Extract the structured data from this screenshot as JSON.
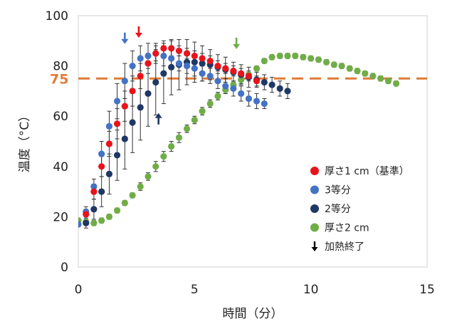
{
  "chart_data": {
    "type": "scatter",
    "xlabel": "時間（分）",
    "ylabel": "温度（°C）",
    "xlim": [
      0,
      15
    ],
    "ylim": [
      0,
      100
    ],
    "xticks": [
      "0",
      "5",
      "10",
      "15"
    ],
    "yticks": [
      "0",
      "20",
      "40",
      "60",
      "80",
      "100"
    ],
    "grid": false,
    "legend_position": "bottom-right",
    "reference_line": {
      "y": 75,
      "label": "75",
      "color": "#E07B39",
      "style": "dashed"
    },
    "series": [
      {
        "name": "厚さ1 cm（基準）",
        "color": "#E8141B",
        "x": [
          0.33,
          0.67,
          1.0,
          1.33,
          1.67,
          2.0,
          2.33,
          2.67,
          3.0,
          3.33,
          3.67,
          4.0,
          4.33,
          4.67,
          5.0,
          5.33,
          5.67,
          6.0,
          6.33,
          6.67,
          7.0,
          7.33,
          7.67
        ],
        "y": [
          21,
          30,
          40,
          49,
          57,
          64,
          70,
          76,
          81,
          85,
          87,
          87,
          86,
          85,
          84,
          83,
          82,
          80,
          79,
          78,
          77,
          76,
          74
        ],
        "err": [
          2,
          3,
          4,
          5,
          6,
          6,
          6,
          5,
          4,
          3,
          3,
          3,
          2,
          2,
          2,
          2,
          2,
          2,
          2,
          2,
          2,
          2,
          2
        ]
      },
      {
        "name": "3等分",
        "color": "#4472C4",
        "x": [
          0.0,
          0.33,
          0.67,
          1.0,
          1.33,
          1.67,
          2.0,
          2.33,
          2.67,
          3.0,
          3.33,
          3.67,
          4.0,
          4.33,
          4.67,
          5.0,
          5.33,
          5.67,
          6.0,
          6.33,
          6.67,
          7.0,
          7.33,
          7.67,
          8.0
        ],
        "y": [
          17,
          22,
          32,
          45,
          56,
          66,
          74,
          80,
          83,
          84,
          85,
          84,
          83,
          81,
          80,
          79,
          77,
          76,
          74,
          72,
          71,
          69,
          67,
          66,
          65
        ],
        "err": [
          1,
          2,
          3,
          5,
          6,
          7,
          7,
          6,
          5,
          5,
          4,
          4,
          4,
          3,
          3,
          3,
          3,
          3,
          3,
          3,
          3,
          3,
          3,
          3,
          2
        ]
      },
      {
        "name": "2等分",
        "color": "#1F3864",
        "x": [
          0.33,
          0.67,
          1.0,
          1.33,
          1.67,
          2.0,
          2.33,
          2.67,
          3.0,
          3.33,
          3.67,
          4.0,
          4.33,
          4.67,
          5.0,
          5.33,
          5.67,
          6.0,
          6.33,
          6.67,
          7.0,
          7.33,
          7.67,
          8.0,
          8.33,
          8.67,
          9.0
        ],
        "y": [
          17.5,
          23,
          30,
          37,
          44.5,
          51,
          57.5,
          63.5,
          69,
          73.5,
          77,
          79.5,
          80.5,
          81.5,
          81.5,
          81,
          80.5,
          79.5,
          78.5,
          77.5,
          76.5,
          75.5,
          74.5,
          73.5,
          72.5,
          71,
          70
        ],
        "err": [
          2,
          4,
          6,
          8,
          10,
          12,
          12,
          13,
          13,
          13,
          12,
          11,
          10,
          9,
          8,
          7,
          6,
          5,
          5,
          4,
          4,
          4,
          3,
          3,
          3,
          3,
          3
        ]
      },
      {
        "name": "厚さ2 cm",
        "color": "#70AD47",
        "x": [
          0.0,
          0.33,
          0.67,
          1.0,
          1.33,
          1.67,
          2.0,
          2.33,
          2.67,
          3.0,
          3.33,
          3.67,
          4.0,
          4.33,
          4.67,
          5.0,
          5.33,
          5.67,
          6.0,
          6.33,
          6.67,
          7.0,
          7.33,
          7.67,
          8.0,
          8.33,
          8.67,
          9.0,
          9.33,
          9.67,
          10.0,
          10.33,
          10.67,
          11.0,
          11.33,
          11.67,
          12.0,
          12.33,
          12.67,
          13.0,
          13.33,
          13.67
        ],
        "y": [
          18.5,
          18,
          17.5,
          18.5,
          20,
          22.5,
          25.5,
          28.5,
          32,
          36,
          40,
          44,
          48,
          51.5,
          55,
          58.5,
          62,
          65,
          68,
          70.5,
          72.5,
          74.5,
          76.5,
          79,
          82,
          83.5,
          84,
          84,
          84,
          83.5,
          83,
          82.5,
          81.5,
          80.5,
          80,
          79,
          78,
          77,
          76,
          75,
          74,
          73
        ],
        "err": [
          1,
          1,
          1,
          1,
          1,
          1,
          1,
          1,
          1.5,
          1.5,
          2,
          2,
          2,
          2,
          1.5,
          1.5,
          1.5,
          1.5,
          1.5,
          1.5,
          1.5,
          1.5,
          1,
          1,
          1,
          1,
          1,
          1,
          1,
          1,
          1,
          1,
          1,
          1,
          1,
          1,
          1,
          1,
          1,
          1,
          1,
          1
        ]
      }
    ],
    "legend_extra": {
      "label": "加熱終了",
      "icon": "down-arrow-icon",
      "color": "#000000"
    },
    "annotations": [
      {
        "type": "arrow",
        "direction": "down",
        "x": 2.0,
        "y": 91,
        "color": "#4472C4",
        "series": "3等分"
      },
      {
        "type": "arrow",
        "direction": "down",
        "x": 2.6,
        "y": 93.5,
        "color": "#E8141B",
        "series": "厚さ1 cm（基準）"
      },
      {
        "type": "arrow",
        "direction": "up",
        "x": 3.45,
        "y": 59,
        "color": "#1F3864",
        "series": "2等分"
      },
      {
        "type": "arrow",
        "direction": "down",
        "x": 6.8,
        "y": 89,
        "color": "#70AD47",
        "series": "厚さ2 cm"
      }
    ]
  }
}
